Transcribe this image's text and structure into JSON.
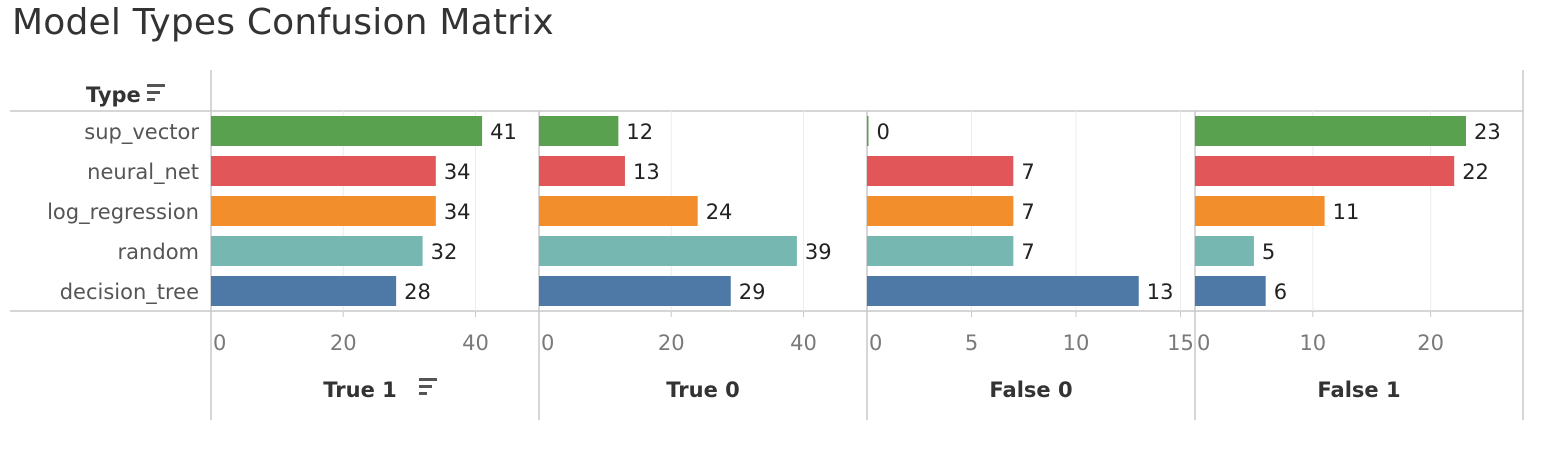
{
  "title": "Model Types Confusion Matrix",
  "row_header": "Type",
  "colors": {
    "sup_vector": "#59a14f",
    "neural_net": "#e15759",
    "log_regression": "#f28e2b",
    "random": "#76b7b2",
    "decision_tree": "#4e79a7"
  },
  "icons": {
    "row_header_sort": "sort-descending-icon",
    "true1_sort": "sort-descending-icon"
  },
  "chart_data": {
    "type": "bar",
    "orientation": "horizontal",
    "categories": [
      "sup_vector",
      "neural_net",
      "log_regression",
      "random",
      "decision_tree"
    ],
    "series": [
      {
        "name": "True 1",
        "values": [
          41,
          34,
          34,
          32,
          28
        ],
        "xlim": [
          0,
          49
        ],
        "ticks": [
          0,
          20,
          40
        ]
      },
      {
        "name": "True 0",
        "values": [
          12,
          13,
          24,
          39,
          29
        ],
        "xlim": [
          0,
          49
        ],
        "ticks": [
          0,
          20,
          40
        ]
      },
      {
        "name": "False 0",
        "values": [
          0,
          7,
          7,
          7,
          13
        ],
        "xlim": [
          0,
          15.5
        ],
        "ticks": [
          0,
          5,
          10,
          15
        ]
      },
      {
        "name": "False 1",
        "values": [
          23,
          22,
          11,
          5,
          6
        ],
        "xlim": [
          0,
          27.5
        ],
        "ticks": [
          0,
          10,
          20
        ]
      }
    ],
    "grid": true,
    "legend": "none"
  }
}
